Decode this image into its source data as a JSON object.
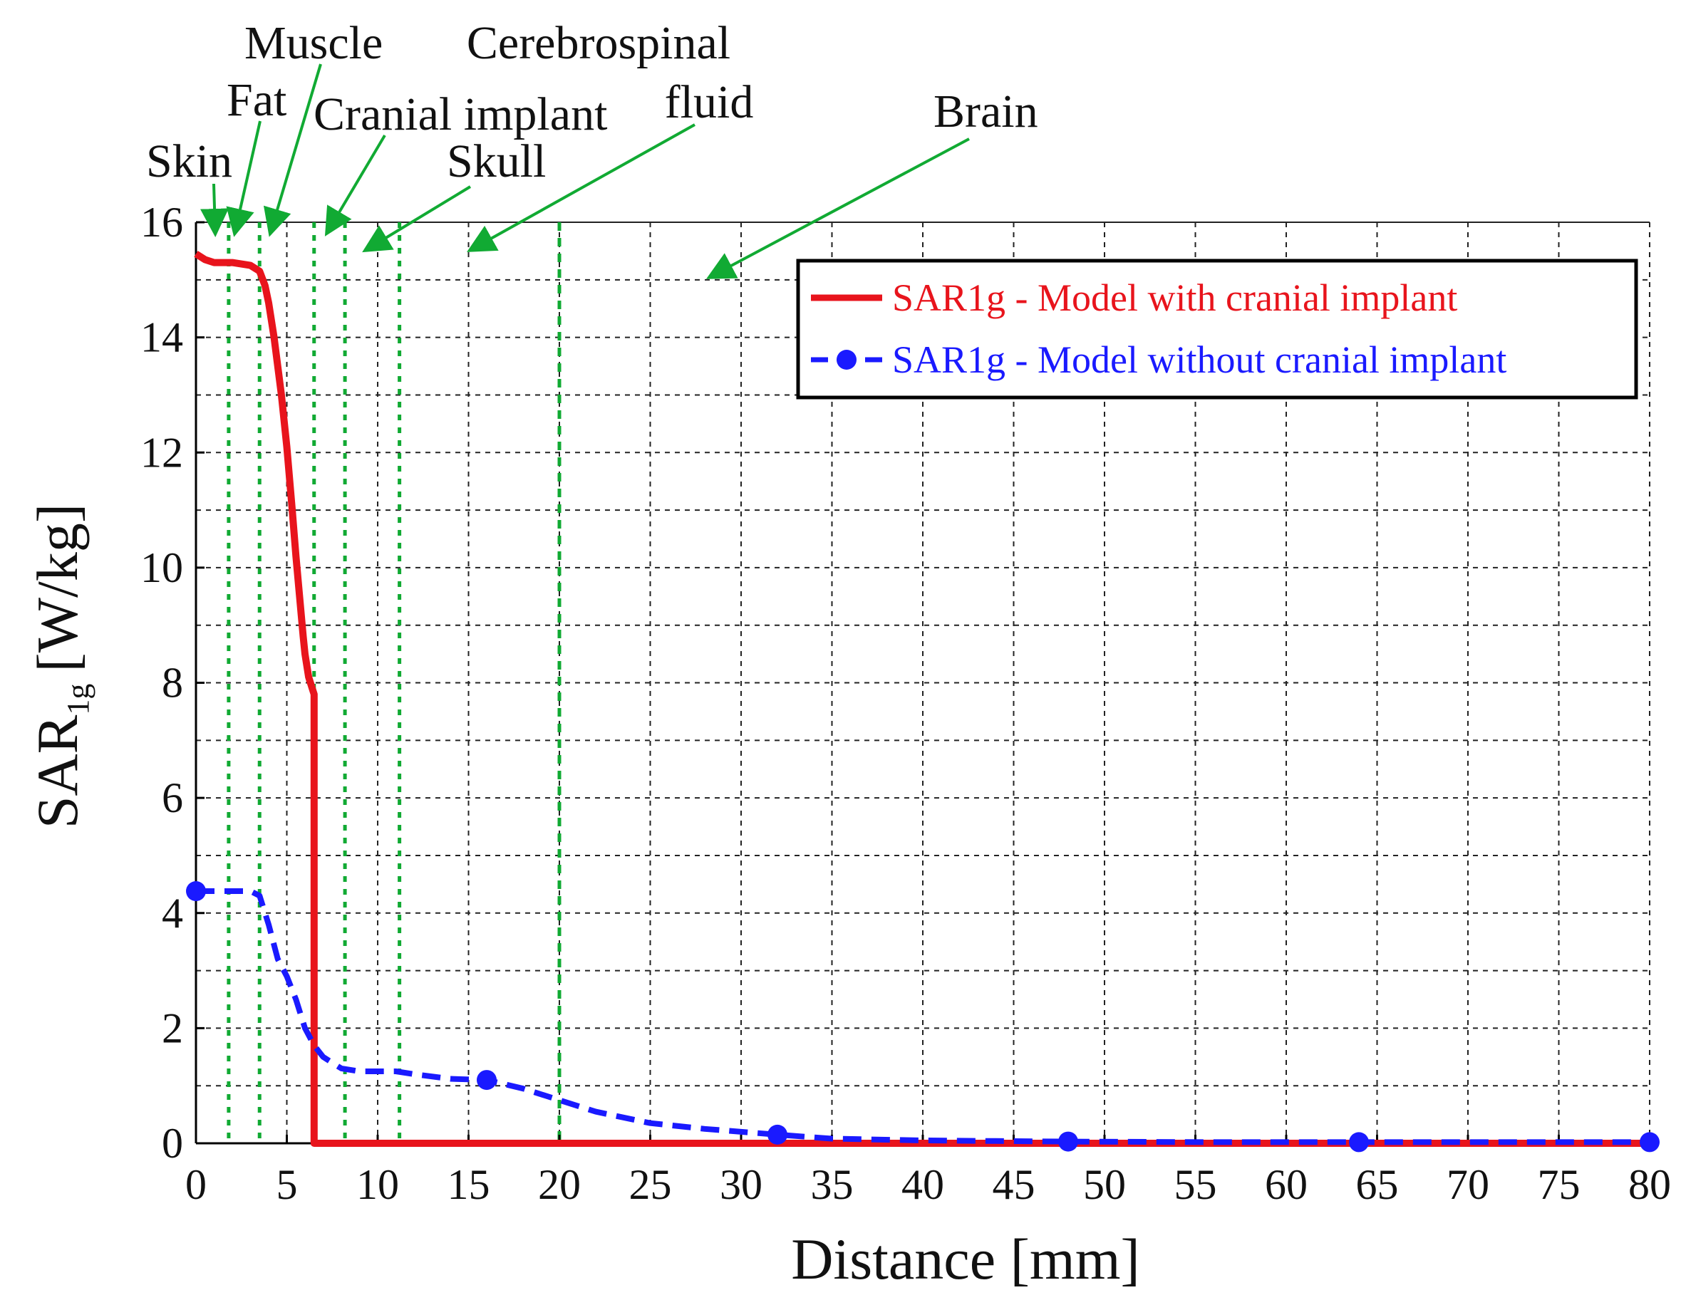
{
  "chart_data": {
    "type": "line",
    "title": "",
    "xlabel": "Distance [mm]",
    "ylabel": "SAR",
    "ylabel_subscript": "1g",
    "ylabel_unit": "[W/kg]",
    "xlim": [
      0,
      80
    ],
    "ylim": [
      0,
      16
    ],
    "xticks": [
      0,
      5,
      10,
      15,
      20,
      25,
      30,
      35,
      40,
      45,
      50,
      55,
      60,
      65,
      70,
      75,
      80
    ],
    "yticks": [
      0,
      2,
      4,
      6,
      8,
      10,
      12,
      14,
      16
    ],
    "xtick_labels": [
      "0",
      "5",
      "10",
      "15",
      "20",
      "25",
      "30",
      "35",
      "40",
      "45",
      "50",
      "55",
      "60",
      "65",
      "70",
      "75",
      "80"
    ],
    "ytick_labels": [
      "0",
      "2",
      "4",
      "6",
      "8",
      "10",
      "12",
      "14",
      "16"
    ],
    "grid": true,
    "legend_position": "top-right",
    "series": [
      {
        "name": "SAR1g - Model with cranial implant",
        "color": "#e8141c",
        "style": "solid",
        "marker": "none",
        "x": [
          0,
          0.5,
          1.0,
          2.0,
          3.0,
          3.5,
          3.8,
          4.0,
          4.3,
          4.7,
          5.0,
          5.3,
          5.5,
          5.7,
          5.9,
          6.0,
          6.2,
          6.4,
          6.5,
          6.5,
          7,
          10,
          20,
          32,
          48,
          64,
          80
        ],
        "y": [
          15.45,
          15.35,
          15.3,
          15.3,
          15.25,
          15.15,
          14.9,
          14.6,
          14.0,
          13.0,
          12.1,
          11.0,
          10.2,
          9.5,
          8.8,
          8.5,
          8.1,
          7.9,
          7.8,
          0.0,
          0.0,
          0.0,
          0.0,
          0.0,
          0.0,
          0.0,
          0.0
        ]
      },
      {
        "name": "SAR1g - Model without cranial implant",
        "color": "#1a1aff",
        "style": "dashed",
        "marker": "circle",
        "marker_x": [
          0,
          16,
          32,
          48,
          64,
          80
        ],
        "x": [
          0,
          1.0,
          2.0,
          3.0,
          3.5,
          4.0,
          4.5,
          5.0,
          5.5,
          6.0,
          6.5,
          7.0,
          8.0,
          9.0,
          10.0,
          11.0,
          12.0,
          14.0,
          16.0,
          18.0,
          20.0,
          22.0,
          25.0,
          28.0,
          32.0,
          35.0,
          40.0,
          48.0,
          56.0,
          64.0,
          72.0,
          80.0
        ],
        "y": [
          4.38,
          4.38,
          4.38,
          4.38,
          4.3,
          3.8,
          3.2,
          2.9,
          2.5,
          2.0,
          1.7,
          1.5,
          1.3,
          1.25,
          1.25,
          1.25,
          1.2,
          1.12,
          1.1,
          0.95,
          0.75,
          0.55,
          0.35,
          0.25,
          0.15,
          0.08,
          0.05,
          0.03,
          0.02,
          0.02,
          0.02,
          0.02
        ]
      }
    ],
    "region_boundaries_x": [
      1.8,
      3.5,
      6.5,
      8.2,
      11.2,
      20.0
    ],
    "region_labels": [
      {
        "text": "Skin",
        "x": 1.0
      },
      {
        "text": "Fat",
        "x": 2.2
      },
      {
        "text": "Muscle",
        "x": 4.3
      },
      {
        "text": "Cranial implant",
        "x": 7.5
      },
      {
        "text": "Skull",
        "x": 9.5
      },
      {
        "text": "Cerebrospinal",
        "x": 15.0
      },
      {
        "text": "fluid",
        "x": 15.0
      },
      {
        "text": "Brain",
        "x": 29.0
      }
    ]
  }
}
